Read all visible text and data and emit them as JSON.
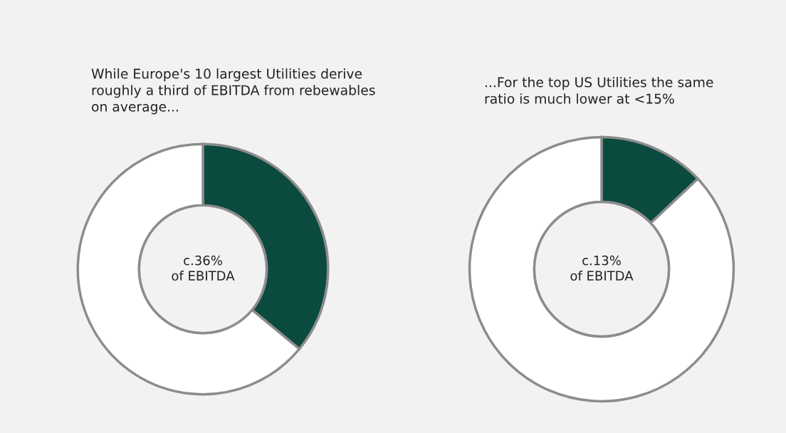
{
  "chart_data": [
    {
      "type": "donut",
      "title": "While Europe's 10 largest Utilities derive\nroughly a third of EBITDA from rebewables\non average...",
      "categories": [
        null,
        null
      ],
      "values": [
        36,
        64
      ],
      "colors": [
        "#0b4a3f",
        "#ffffff"
      ],
      "annotations": [
        "c.36%\nof EBITDA"
      ]
    },
    {
      "type": "donut",
      "title": "...For the top US Utilities the same\nratio is much lower at <15%",
      "categories": [
        null,
        null
      ],
      "values": [
        13,
        87
      ],
      "colors": [
        "#0b4a3f",
        "#ffffff"
      ],
      "annotations": [
        "c.13%\nof EBITDA"
      ]
    }
  ]
}
